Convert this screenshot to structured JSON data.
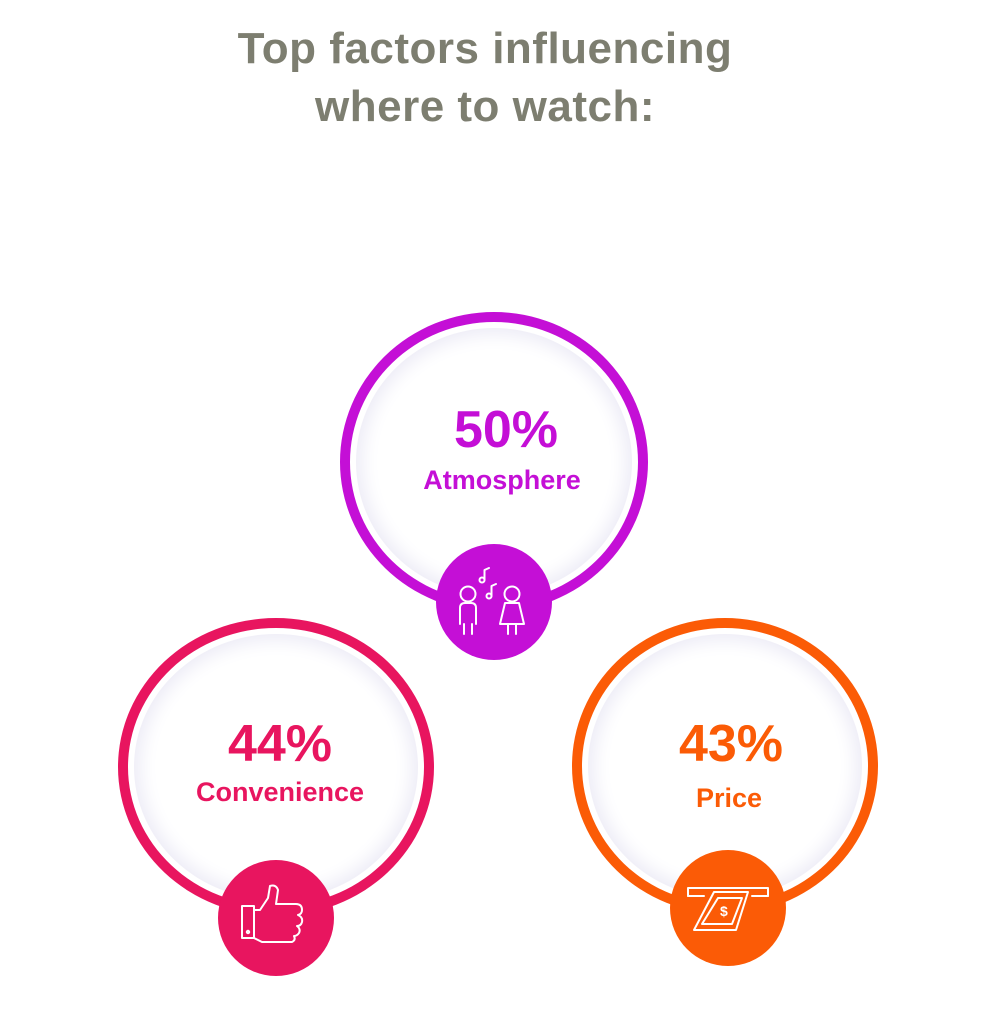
{
  "title": {
    "line1": "Top factors influencing",
    "line2": "where to watch:"
  },
  "factors": [
    {
      "value": "50%",
      "label": "Atmosphere",
      "icon": "people-music-icon",
      "color": "#c40fd6"
    },
    {
      "value": "44%",
      "label": "Convenience",
      "icon": "thumbs-up-icon",
      "color": "#e8155f"
    },
    {
      "value": "43%",
      "label": "Price",
      "icon": "cash-icon",
      "color": "#fb5b06"
    }
  ]
}
